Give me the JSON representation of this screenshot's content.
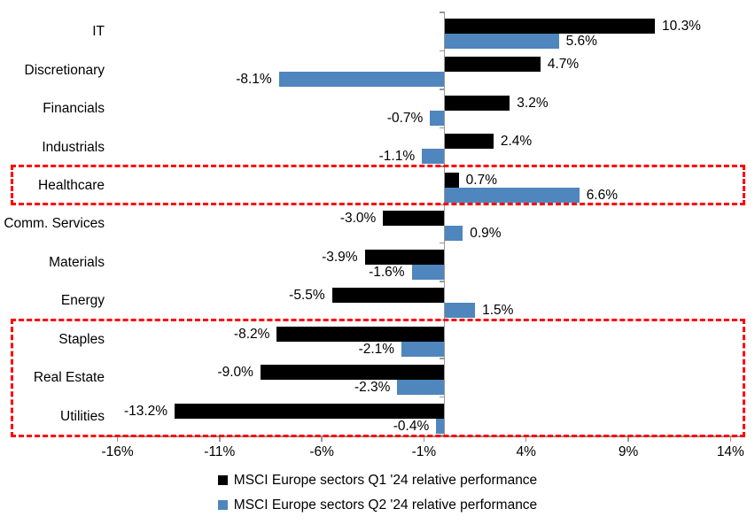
{
  "chart_data": {
    "type": "bar",
    "orientation": "horizontal",
    "title": "",
    "categories": [
      "IT",
      "Discretionary",
      "Financials",
      "Industrials",
      "Healthcare",
      "Comm. Services",
      "Materials",
      "Energy",
      "Staples",
      "Real Estate",
      "Utilities"
    ],
    "series": [
      {
        "name": "MSCI Europe sectors Q1 '24 relative performance",
        "color": "#000000",
        "values": [
          10.3,
          4.7,
          3.2,
          2.4,
          0.7,
          -3.0,
          -3.9,
          -5.5,
          -8.2,
          -9.0,
          -13.2
        ],
        "labels": [
          "10.3%",
          "4.7%",
          "3.2%",
          "2.4%",
          "0.7%",
          "-3.0%",
          "-3.9%",
          "-5.5%",
          "-8.2%",
          "-9.0%",
          "-13.2%"
        ]
      },
      {
        "name": "MSCI Europe sectors Q2 '24 relative performance",
        "color": "#4F86BD",
        "values": [
          5.6,
          -8.1,
          -0.7,
          -1.1,
          6.6,
          0.9,
          -1.6,
          1.5,
          -2.1,
          -2.3,
          -0.4
        ],
        "labels": [
          "5.6%",
          "-8.1%",
          "-0.7%",
          "-1.1%",
          "6.6%",
          "0.9%",
          "-1.6%",
          "1.5%",
          "-2.1%",
          "-2.3%",
          "-0.4%"
        ]
      }
    ],
    "x_ticks": {
      "values": [
        -16,
        -11,
        -6,
        -1,
        4,
        9,
        14
      ],
      "labels": [
        "-16%",
        "-11%",
        "-6%",
        "-1%",
        "4%",
        "9%",
        "14%"
      ]
    },
    "xlim": [
      -16.9,
      14.6
    ],
    "grid": false,
    "axis_color": "#989898",
    "highlight_color": "#FF0000",
    "annotations": [
      {
        "type": "dashed-box",
        "categories": [
          "Healthcare"
        ]
      },
      {
        "type": "dashed-box",
        "categories": [
          "Staples",
          "Real Estate",
          "Utilities"
        ]
      }
    ],
    "legend_position": "bottom-center"
  },
  "legend": [
    {
      "label": "MSCI Europe sectors Q1 '24 relative performance",
      "color": "#000000"
    },
    {
      "label": "MSCI Europe sectors Q2 '24 relative performance",
      "color": "#4F86BD"
    }
  ]
}
